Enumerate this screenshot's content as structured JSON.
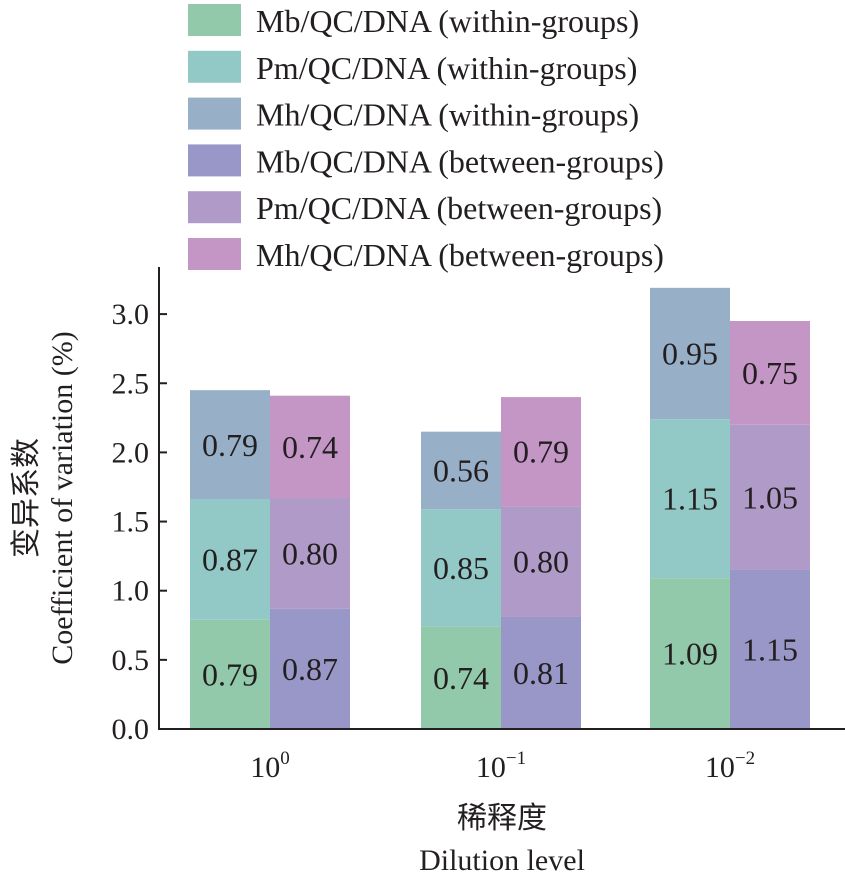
{
  "chart_data": {
    "type": "bar",
    "stacked": true,
    "categories": [
      "10",
      "10",
      "10"
    ],
    "category_exponents": [
      "0",
      "−1",
      "−2"
    ],
    "xlabel_cn": "稀释度",
    "xlabel": "Dilution level",
    "ylabel_cn": "变异系数",
    "ylabel": "Coefficient of variation (%)",
    "ylim": [
      0,
      3.3
    ],
    "yticks": [
      "0.0",
      "0.5",
      "1.0",
      "1.5",
      "2.0",
      "2.5",
      "3.0"
    ],
    "legend_position": "top",
    "series": [
      {
        "name": "Mb/QC/DNA (within-groups)",
        "group": "within-groups",
        "color": "#92c9aa",
        "values": [
          0.79,
          0.74,
          1.09
        ],
        "labels": [
          "0.79",
          "0.74",
          "1.09"
        ]
      },
      {
        "name": "Pm/QC/DNA (within-groups)",
        "group": "within-groups",
        "color": "#92c9c7",
        "values": [
          0.87,
          0.85,
          1.15
        ],
        "labels": [
          "0.87",
          "0.85",
          "1.15"
        ]
      },
      {
        "name": "Mh/QC/DNA (within-groups)",
        "group": "within-groups",
        "color": "#97b0c8",
        "values": [
          0.79,
          0.56,
          0.95
        ],
        "labels": [
          "0.79",
          "0.56",
          "0.95"
        ]
      },
      {
        "name": "Mb/QC/DNA (between-groups)",
        "group": "between-groups",
        "color": "#9897c8",
        "values": [
          0.87,
          0.81,
          1.15
        ],
        "labels": [
          "0.87",
          "0.81",
          "1.15"
        ]
      },
      {
        "name": "Pm/QC/DNA (between-groups)",
        "group": "between-groups",
        "color": "#b09ac8",
        "values": [
          0.8,
          0.8,
          1.05
        ],
        "labels": [
          "0.80",
          "0.80",
          "1.05"
        ]
      },
      {
        "name": "Mh/QC/DNA (between-groups)",
        "group": "between-groups",
        "color": "#c396c6",
        "values": [
          0.74,
          0.79,
          0.75
        ],
        "labels": [
          "0.74",
          "0.79",
          "0.75"
        ]
      }
    ]
  }
}
